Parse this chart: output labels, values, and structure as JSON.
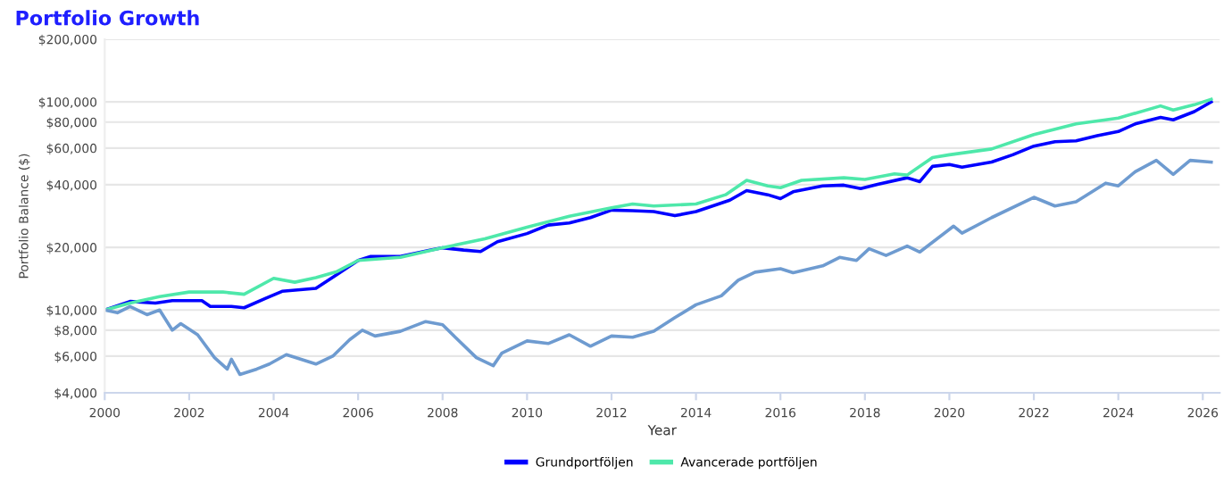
{
  "chart_data": {
    "type": "line",
    "title": "Portfolio Growth",
    "xlabel": "Year",
    "ylabel": "Portfolio Balance ($)",
    "log": true,
    "grid": "y",
    "legend": "bottom",
    "marker": "none",
    "line_style": "solid",
    "xlim": [
      2000,
      2026.4
    ],
    "xticks": [
      2000,
      2002,
      2004,
      2006,
      2008,
      2010,
      2012,
      2014,
      2016,
      2018,
      2020,
      2022,
      2024,
      2026
    ],
    "ylim": [
      4000,
      200000
    ],
    "yticks": [
      {
        "value": 4000,
        "label": "$4,000"
      },
      {
        "value": 6000,
        "label": "$6,000"
      },
      {
        "value": 8000,
        "label": "$8,000"
      },
      {
        "value": 10000,
        "label": "$10,000"
      },
      {
        "value": 20000,
        "label": "$20,000"
      },
      {
        "value": 40000,
        "label": "$40,000"
      },
      {
        "value": 60000,
        "label": "$60,000"
      },
      {
        "value": 80000,
        "label": "$80,000"
      },
      {
        "value": 100000,
        "label": "$100,000"
      },
      {
        "value": 200000,
        "label": "$200,000"
      }
    ],
    "series": [
      {
        "name": "Grundportföljen",
        "color": "#0000ff",
        "x": [
          2000.0,
          2000.6,
          2001.2,
          2001.6,
          2002.3,
          2002.5,
          2003.0,
          2003.3,
          2003.8,
          2004.2,
          2005.0,
          2005.5,
          2006.0,
          2006.3,
          2007.0,
          2007.7,
          2008.0,
          2008.5,
          2008.9,
          2009.3,
          2010.0,
          2010.5,
          2011.0,
          2011.5,
          2012.0,
          2012.5,
          2013.0,
          2013.5,
          2014.0,
          2014.8,
          2015.2,
          2015.7,
          2016.0,
          2016.3,
          2017.0,
          2017.5,
          2017.9,
          2018.3,
          2019.0,
          2019.3,
          2019.6,
          2020.0,
          2020.3,
          2021.0,
          2021.5,
          2022.0,
          2022.5,
          2023.0,
          2023.5,
          2024.0,
          2024.4,
          2025.0,
          2025.3,
          2025.8,
          2026.2
        ],
        "values": [
          10000,
          11000,
          10800,
          11100,
          11100,
          10400,
          10400,
          10250,
          11350,
          12300,
          12700,
          14800,
          17300,
          18100,
          18100,
          19400,
          19900,
          19400,
          19100,
          21300,
          23300,
          25600,
          26200,
          27800,
          30200,
          30000,
          29700,
          28400,
          29700,
          33700,
          37500,
          35800,
          34300,
          37000,
          39500,
          39800,
          38300,
          40200,
          43200,
          41400,
          49000,
          50000,
          48600,
          51400,
          55700,
          61300,
          64400,
          65000,
          68800,
          72100,
          78400,
          84300,
          82000,
          89800,
          100000
        ]
      },
      {
        "name": "Avancerade portföljen",
        "color": "#4ee8aa",
        "x": [
          2000.0,
          2000.6,
          2001.3,
          2002.0,
          2002.8,
          2003.3,
          2004.0,
          2004.5,
          2005.0,
          2005.5,
          2006.0,
          2007.0,
          2008.0,
          2009.0,
          2010.0,
          2011.0,
          2012.0,
          2012.5,
          2013.0,
          2014.0,
          2014.7,
          2015.2,
          2015.7,
          2016.0,
          2016.5,
          2017.5,
          2018.0,
          2018.7,
          2019.0,
          2019.6,
          2020.0,
          2021.0,
          2022.0,
          2023.0,
          2023.7,
          2024.0,
          2025.0,
          2025.3,
          2025.8,
          2026.2
        ],
        "values": [
          10000,
          10800,
          11600,
          12200,
          12200,
          11900,
          14200,
          13600,
          14300,
          15300,
          17300,
          17900,
          19900,
          22000,
          25000,
          28200,
          31000,
          32300,
          31600,
          32300,
          35800,
          42000,
          39500,
          38700,
          42000,
          43200,
          42400,
          45100,
          44500,
          54000,
          55700,
          59400,
          69700,
          78400,
          82000,
          83600,
          95700,
          91400,
          96900,
          103000
        ]
      },
      {
        "color": "#6e9bd0",
        "x": [
          2000.0,
          2000.3,
          2000.6,
          2001.0,
          2001.3,
          2001.6,
          2001.8,
          2002.2,
          2002.6,
          2002.9,
          2003.0,
          2003.2,
          2003.6,
          2003.9,
          2004.3,
          2005.0,
          2005.4,
          2005.8,
          2006.1,
          2006.4,
          2007.0,
          2007.6,
          2008.0,
          2008.3,
          2008.8,
          2009.2,
          2009.4,
          2010.0,
          2010.5,
          2011.0,
          2011.5,
          2012.0,
          2012.5,
          2013.0,
          2013.5,
          2014.0,
          2014.6,
          2015.0,
          2015.4,
          2016.0,
          2016.3,
          2017.0,
          2017.4,
          2017.8,
          2018.1,
          2018.5,
          2019.0,
          2019.3,
          2020.1,
          2020.3,
          2021.0,
          2022.0,
          2022.5,
          2023.0,
          2023.7,
          2024.0,
          2024.4,
          2024.9,
          2025.3,
          2025.7,
          2026.2
        ],
        "values": [
          10000,
          9700,
          10400,
          9500,
          10000,
          8000,
          8600,
          7600,
          5900,
          5200,
          5800,
          4900,
          5200,
          5500,
          6100,
          5500,
          6000,
          7200,
          8000,
          7500,
          7900,
          8800,
          8500,
          7400,
          5900,
          5400,
          6200,
          7100,
          6900,
          7600,
          6700,
          7500,
          7400,
          7900,
          9200,
          10600,
          11700,
          13900,
          15200,
          15800,
          15100,
          16300,
          17900,
          17300,
          19700,
          18300,
          20300,
          19000,
          25300,
          23400,
          27800,
          34800,
          31600,
          33100,
          40700,
          39500,
          46200,
          52400,
          44800,
          52400,
          51400
        ]
      }
    ]
  }
}
